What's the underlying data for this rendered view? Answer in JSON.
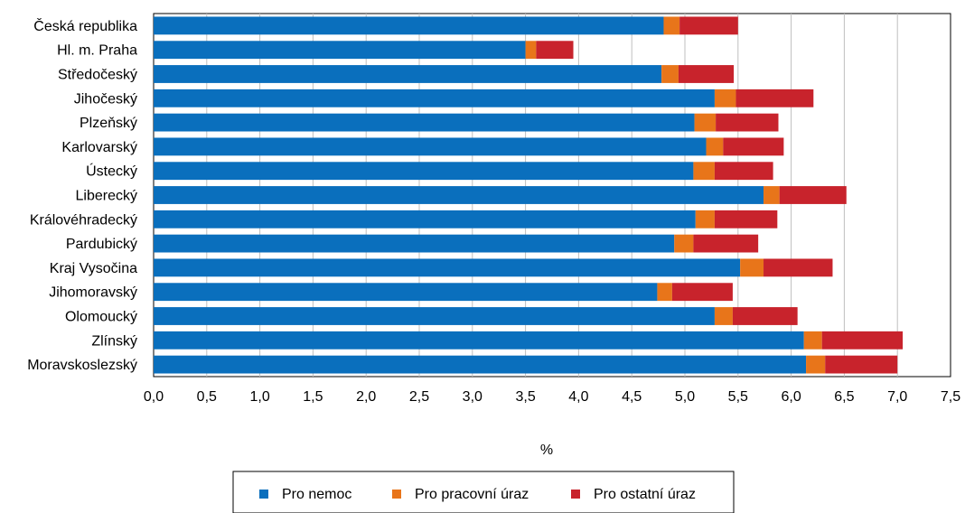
{
  "chart_data": {
    "type": "bar",
    "orientation": "horizontal",
    "stacked": true,
    "xlabel": "%",
    "xlim": [
      0,
      7.5
    ],
    "xticks": [
      "0,0",
      "0,5",
      "1,0",
      "1,5",
      "2,0",
      "2,5",
      "3,0",
      "3,5",
      "4,0",
      "4,5",
      "5,0",
      "5,5",
      "6,0",
      "6,5",
      "7,0",
      "7,5"
    ],
    "grid": "vertical",
    "legend_position": "bottom",
    "categories": [
      "Česká republika",
      "Hl. m. Praha",
      "Středočeský",
      "Jihočeský",
      "Plzeňský",
      "Karlovarský",
      "Ústecký",
      "Liberecký",
      "Královéhradecký",
      "Pardubický",
      "Kraj Vysočina",
      "Jihomoravský",
      "Olomoucký",
      "Zlínský",
      "Moravskoslezský"
    ],
    "series": [
      {
        "name": "Pro nemoc",
        "color": "#0a6fbd",
        "values": [
          4.8,
          3.5,
          4.78,
          5.28,
          5.09,
          5.2,
          5.08,
          5.74,
          5.1,
          4.9,
          5.52,
          4.74,
          5.28,
          6.12,
          6.14
        ]
      },
      {
        "name": "Pro pracovní úraz",
        "color": "#e8751a",
        "values": [
          0.15,
          0.1,
          0.16,
          0.2,
          0.2,
          0.16,
          0.2,
          0.15,
          0.18,
          0.18,
          0.22,
          0.14,
          0.17,
          0.17,
          0.18
        ]
      },
      {
        "name": "Pro ostatní úraz",
        "color": "#c8232c",
        "values": [
          0.55,
          0.35,
          0.52,
          0.73,
          0.59,
          0.57,
          0.55,
          0.63,
          0.59,
          0.61,
          0.65,
          0.57,
          0.61,
          0.76,
          0.68
        ]
      }
    ]
  }
}
